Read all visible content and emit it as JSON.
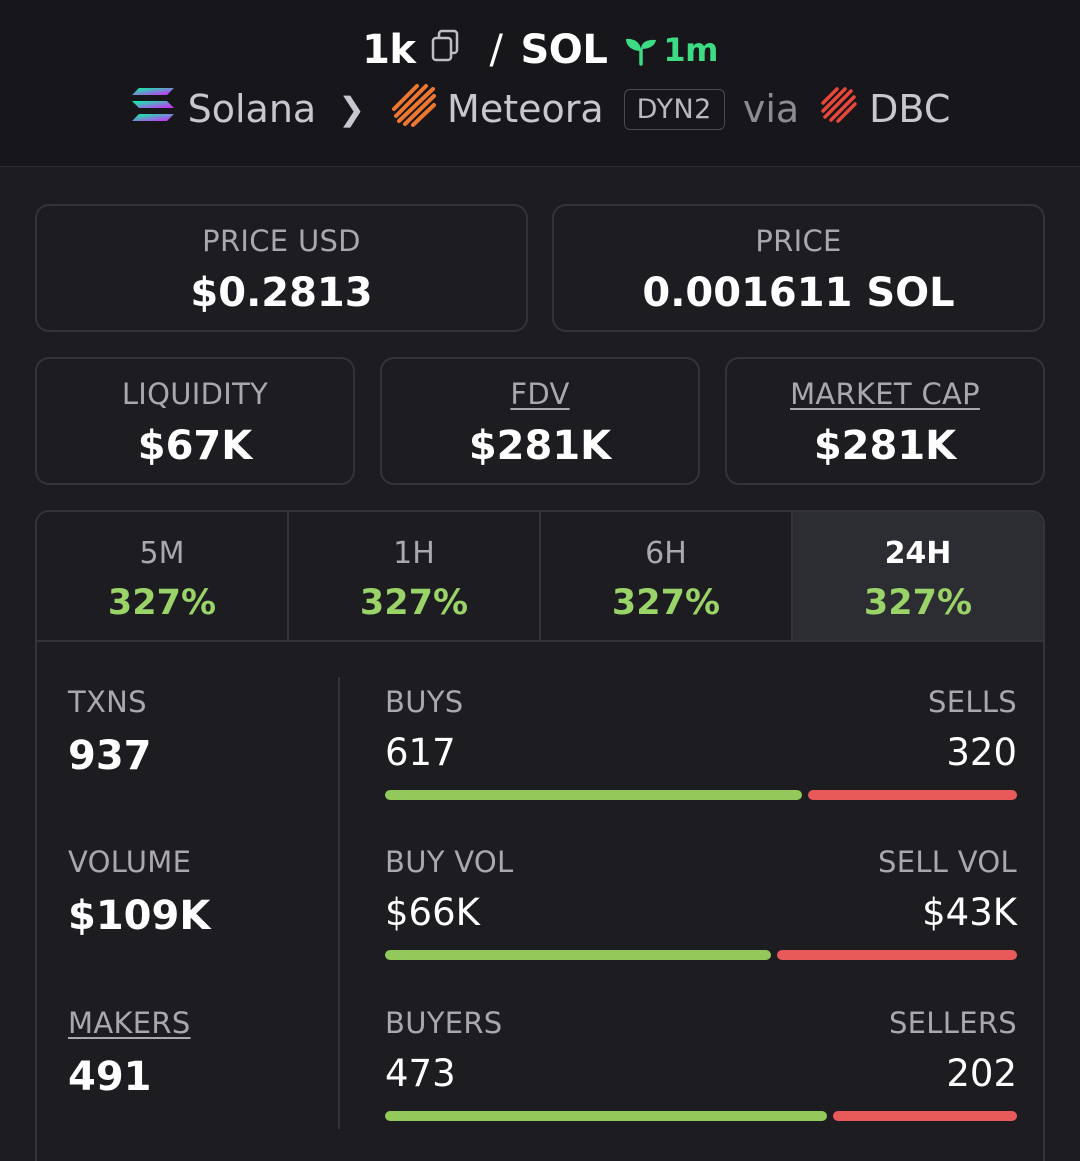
{
  "header": {
    "token_symbol": "1k",
    "quote_symbol": "SOL",
    "age": "1m",
    "chain": "Solana",
    "dex": "Meteora",
    "dex_badge": "DYN2",
    "via": "via",
    "launchpad": "DBC"
  },
  "prices": {
    "price_usd_label": "PRICE USD",
    "price_usd": "$0.2813",
    "price_label": "PRICE",
    "price_native": "0.001611 SOL"
  },
  "metrics": {
    "liquidity_label": "LIQUIDITY",
    "liquidity": "$67K",
    "fdv_label": "FDV",
    "fdv": "$281K",
    "mcap_label": "MARKET CAP",
    "mcap": "$281K"
  },
  "tabs": [
    {
      "label": "5M",
      "value": "327%"
    },
    {
      "label": "1H",
      "value": "327%"
    },
    {
      "label": "6H",
      "value": "327%"
    },
    {
      "label": "24H",
      "value": "327%",
      "active": true
    }
  ],
  "stats": {
    "txns_label": "TXNS",
    "txns": "937",
    "volume_label": "VOLUME",
    "volume": "$109K",
    "makers_label": "MAKERS",
    "makers": "491",
    "buys_label": "BUYS",
    "buys": "617",
    "sells_label": "SELLS",
    "sells": "320",
    "buys_fraction": 0.66,
    "buy_vol_label": "BUY VOL",
    "buy_vol": "$66K",
    "sell_vol_label": "SELL VOL",
    "sell_vol": "$43K",
    "buy_vol_fraction": 0.61,
    "buyers_label": "BUYERS",
    "buyers": "473",
    "sellers_label": "SELLERS",
    "sellers": "202",
    "buyers_fraction": 0.7
  },
  "colors": {
    "positive": "#9ad368",
    "buy_bar": "#93c95a",
    "sell_bar": "#e85a5a",
    "age_green": "#3ddc84"
  }
}
